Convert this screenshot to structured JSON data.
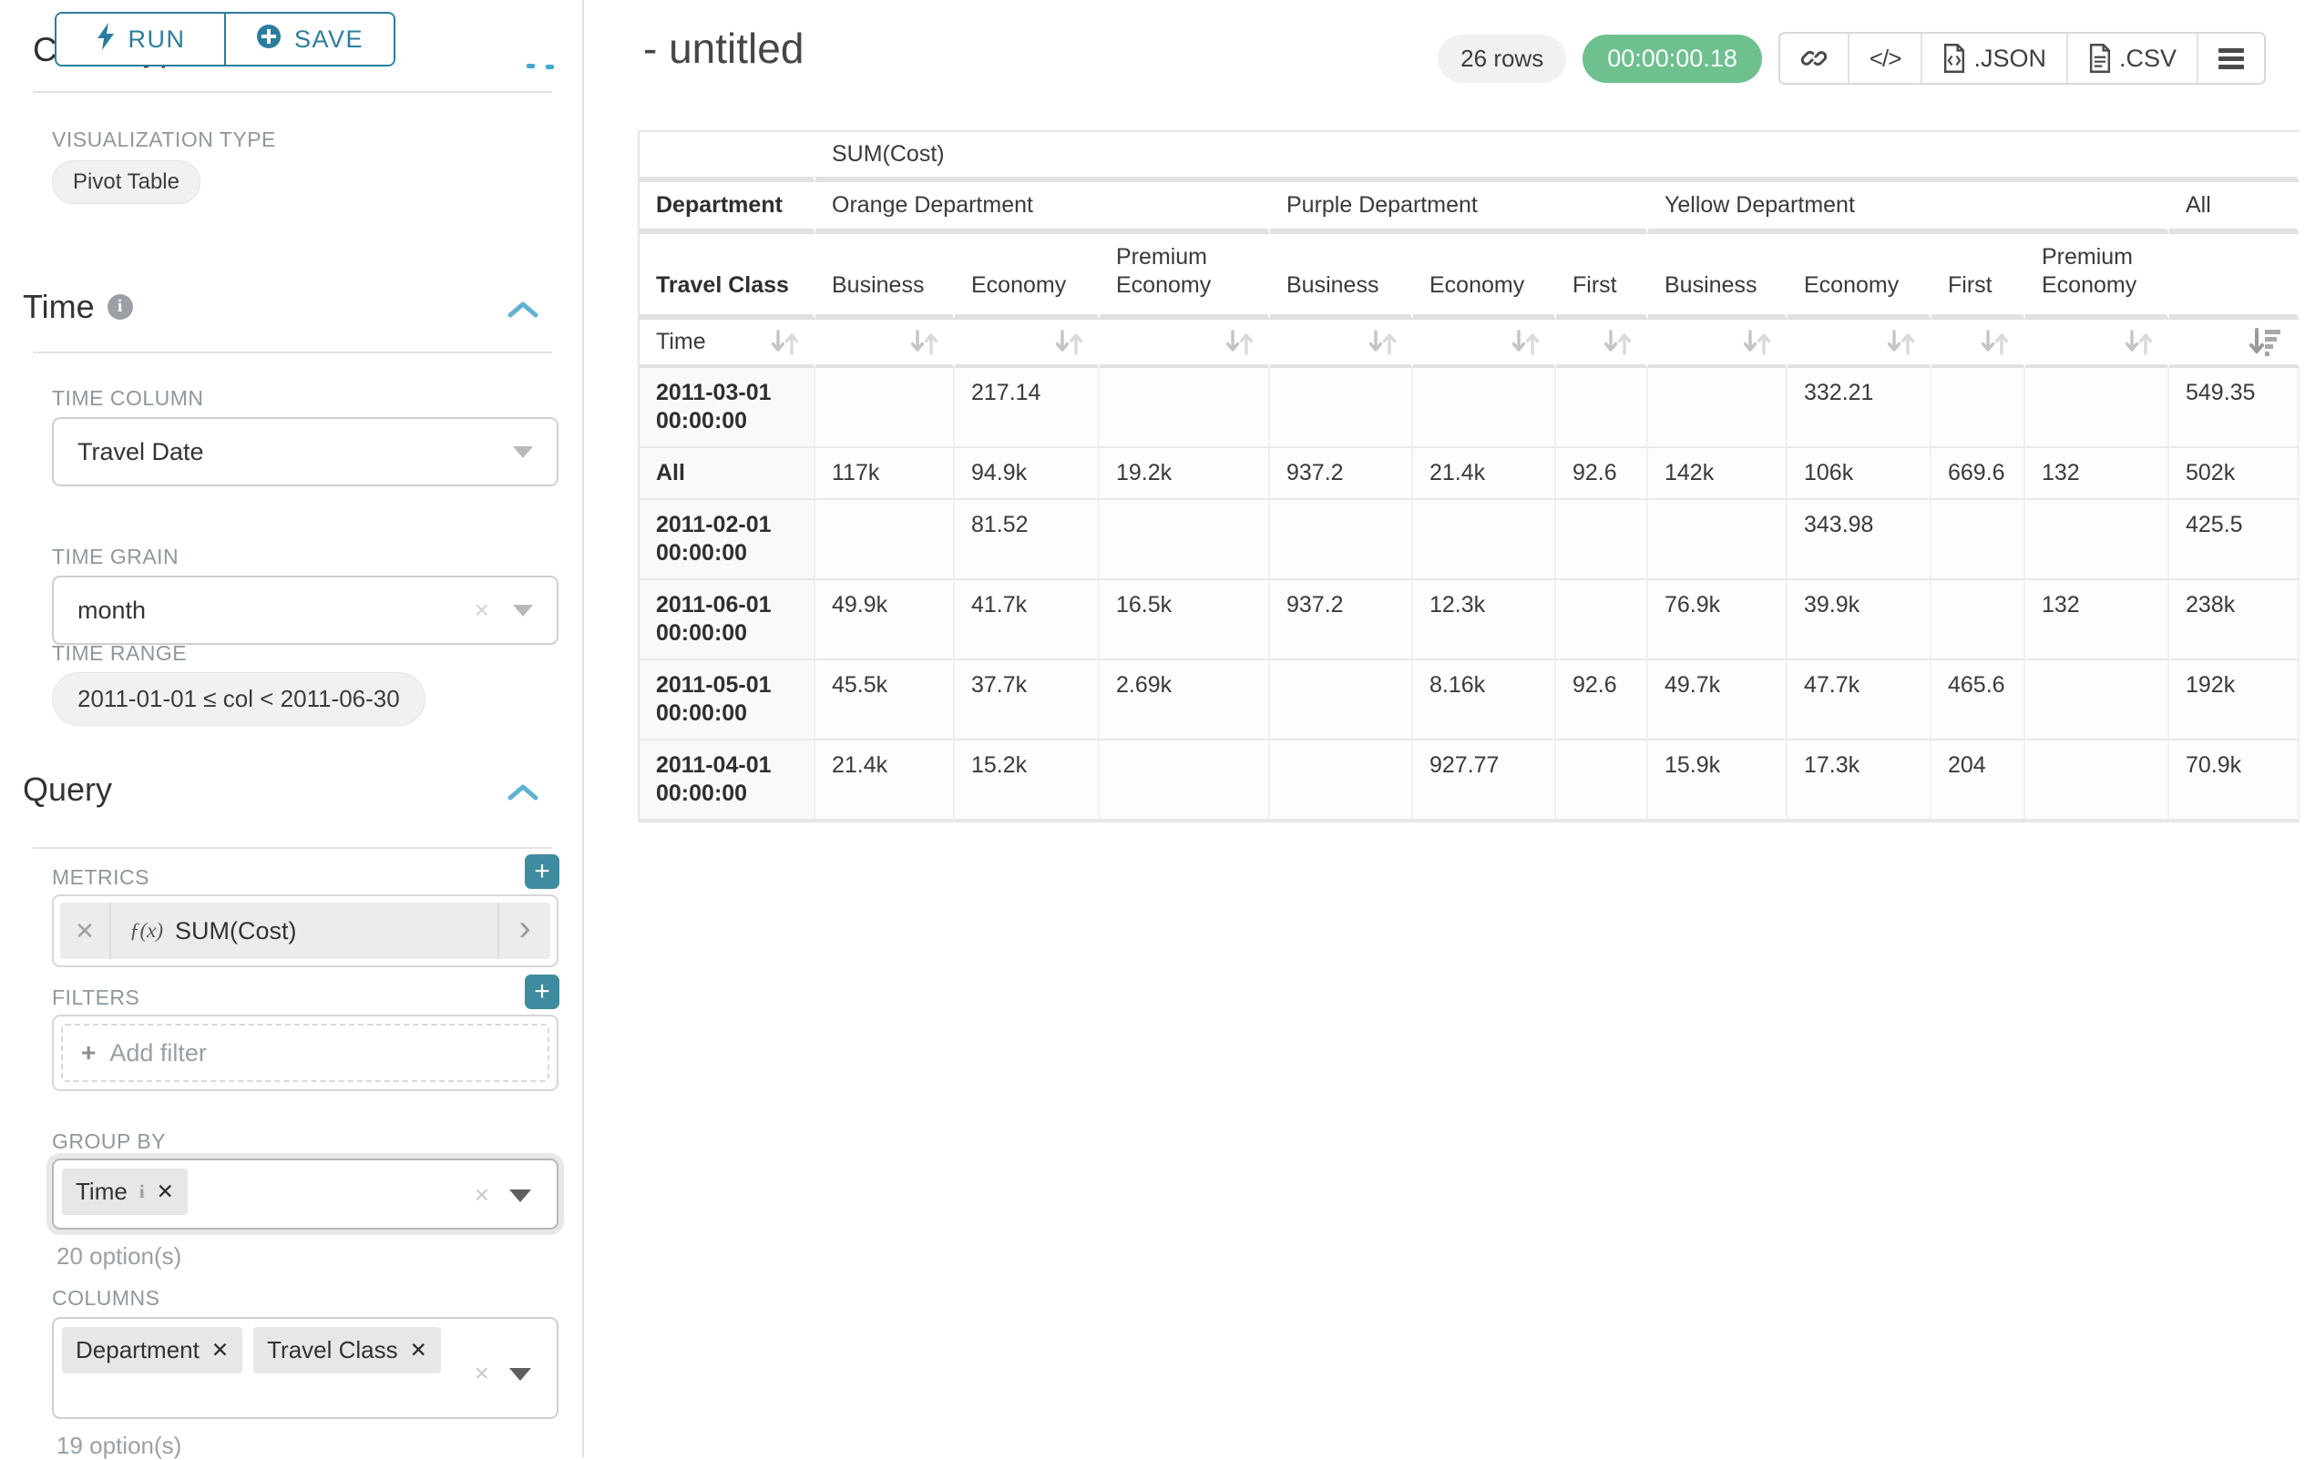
{
  "colors": {
    "accent_teal": "#2a7d9e",
    "add_button_teal": "#3f8ba0",
    "success_green": "#6ec08f",
    "chevron_blue": "#5fb2d1"
  },
  "icons": {
    "clear_x": "×",
    "chip_x": "✕",
    "chip_info": "i",
    "plus": "+",
    "add_filter_plus": "+",
    "chevron_right": "›",
    "fx_prefix": "ƒ(x)",
    "code": "</>"
  },
  "sidebar": {
    "run_label": "RUN",
    "save_label": "SAVE",
    "chart_type_heading": "Chart Type",
    "viz_type_label": "VISUALIZATION TYPE",
    "viz_type_value": "Pivot Table",
    "time": {
      "title": "Time",
      "time_column_label": "TIME COLUMN",
      "time_column_value": "Travel Date",
      "time_grain_label": "TIME GRAIN",
      "time_grain_value": "month",
      "time_range_label": "TIME RANGE",
      "time_range_value": "2011-01-01 ≤ col < 2011-06-30"
    },
    "query": {
      "title": "Query",
      "metrics_label": "METRICS",
      "metric_value": "SUM(Cost)",
      "filters_label": "FILTERS",
      "add_filter_placeholder": "Add filter",
      "group_by_label": "GROUP BY",
      "group_by_chips": [
        "Time"
      ],
      "group_by_options_hint": "20 option(s)",
      "columns_label": "COLUMNS",
      "columns_chips": [
        "Department",
        "Travel Class"
      ],
      "columns_options_hint": "19 option(s)"
    }
  },
  "header": {
    "title": "- untitled",
    "row_count_badge": "26 rows",
    "timer_badge": "00:00:00.18",
    "json_label": ".JSON",
    "csv_label": ".CSV"
  },
  "chart_data": {
    "type": "table",
    "metric_header": "SUM(Cost)",
    "col_dimension_label": "Department",
    "row_dimension_label": "Travel Class",
    "row_axis_label": "Time",
    "col_groups": [
      {
        "label": "Orange Department",
        "span": 3
      },
      {
        "label": "Purple Department",
        "span": 3
      },
      {
        "label": "Yellow Department",
        "span": 4
      },
      {
        "label": "All",
        "span": 1
      }
    ],
    "col_headers": [
      "Business",
      "Economy",
      "Premium Economy",
      "Business",
      "Economy",
      "First",
      "Business",
      "Economy",
      "First",
      "Premium Economy",
      ""
    ],
    "sorted_column": "All",
    "sort_direction": "desc",
    "rows": [
      {
        "label": "2011-03-01 00:00:00",
        "values": [
          "",
          "217.14",
          "",
          "",
          "",
          "",
          "",
          "332.21",
          "",
          "",
          "549.35"
        ]
      },
      {
        "label": "All",
        "bold": true,
        "values": [
          "117k",
          "94.9k",
          "19.2k",
          "937.2",
          "21.4k",
          "92.6",
          "142k",
          "106k",
          "669.6",
          "132",
          "502k"
        ]
      },
      {
        "label": "2011-02-01 00:00:00",
        "values": [
          "",
          "81.52",
          "",
          "",
          "",
          "",
          "",
          "343.98",
          "",
          "",
          "425.5"
        ]
      },
      {
        "label": "2011-06-01 00:00:00",
        "values": [
          "49.9k",
          "41.7k",
          "16.5k",
          "937.2",
          "12.3k",
          "",
          "76.9k",
          "39.9k",
          "",
          "132",
          "238k"
        ]
      },
      {
        "label": "2011-05-01 00:00:00",
        "values": [
          "45.5k",
          "37.7k",
          "2.69k",
          "",
          "8.16k",
          "92.6",
          "49.7k",
          "47.7k",
          "465.6",
          "",
          "192k"
        ]
      },
      {
        "label": "2011-04-01 00:00:00",
        "values": [
          "21.4k",
          "15.2k",
          "",
          "",
          "927.77",
          "",
          "15.9k",
          "17.3k",
          "204",
          "",
          "70.9k"
        ]
      }
    ]
  }
}
